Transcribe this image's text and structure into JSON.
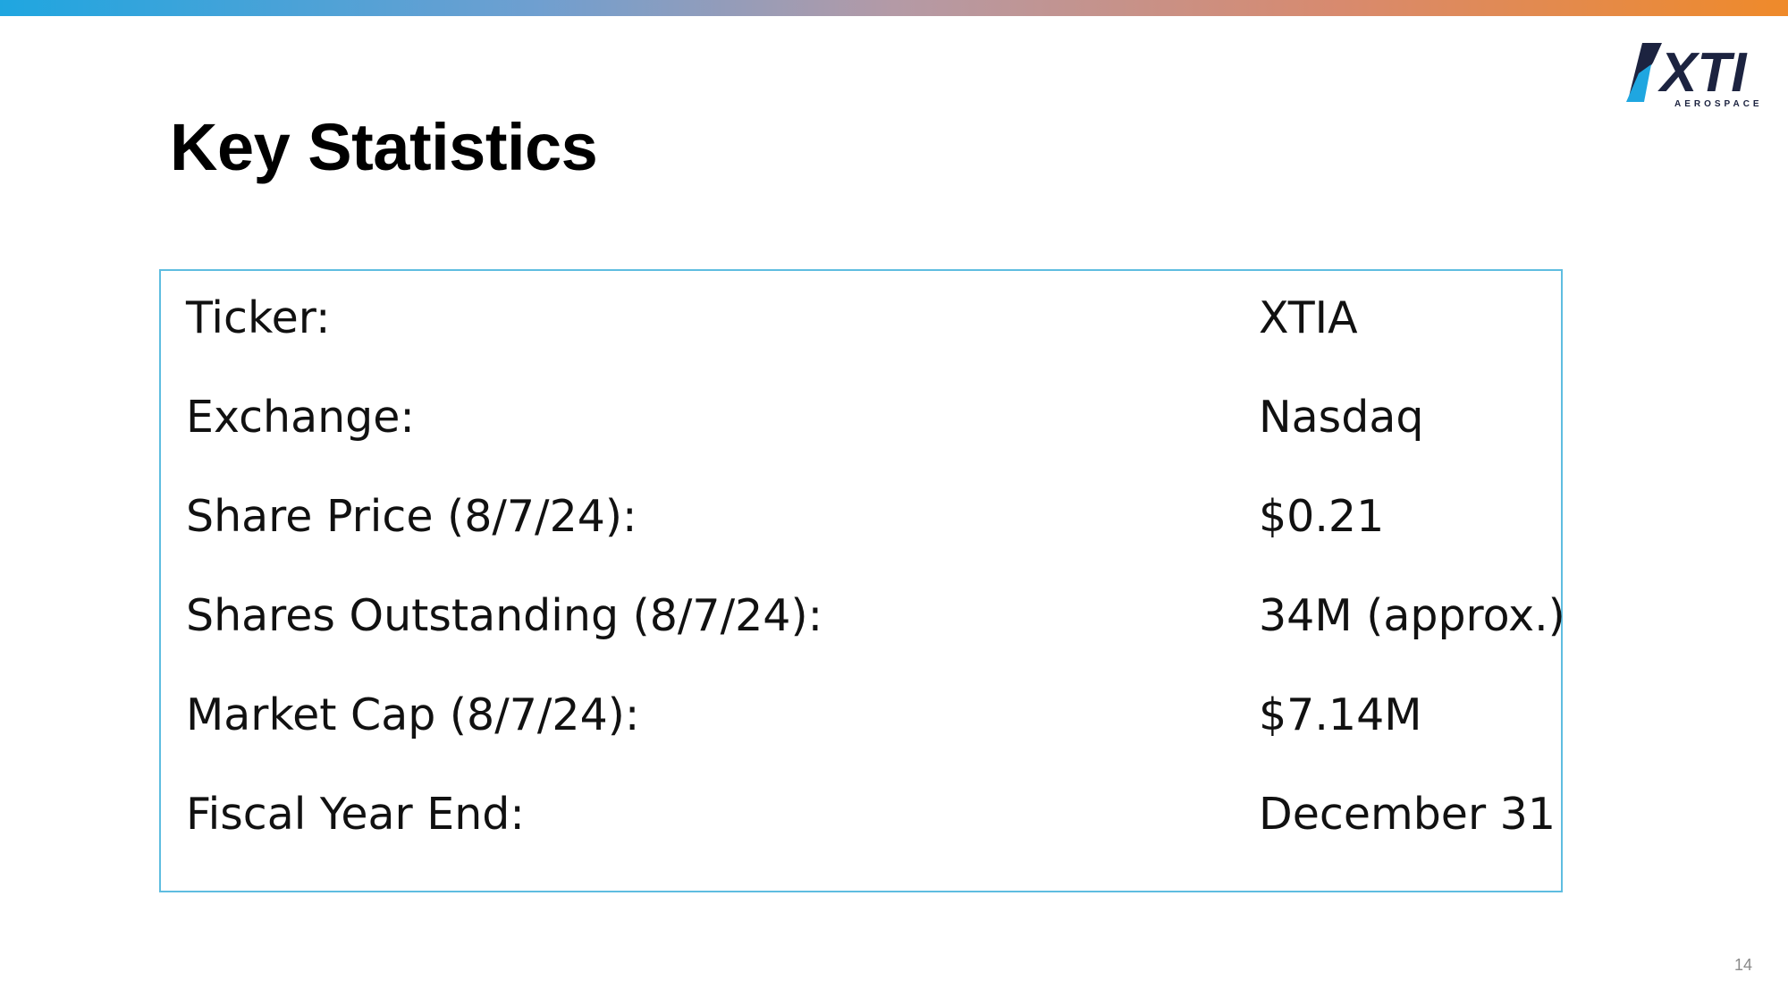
{
  "slide": {
    "title": "Key Statistics",
    "page_number": "14"
  },
  "logo": {
    "text": "XTI",
    "subtext": "AEROSPACE",
    "accent_color": "#1fa6e0",
    "text_color": "#1c2340"
  },
  "colors": {
    "border": "#5fbde0",
    "gradient_start": "#1fa6e0",
    "gradient_end": "#ef8a2a"
  },
  "stats": [
    {
      "label": "Ticker:",
      "value": "XTIA"
    },
    {
      "label": "Exchange:",
      "value": "Nasdaq"
    },
    {
      "label": "Share Price (8/7/24):",
      "value": "$0.21"
    },
    {
      "label": "Shares Outstanding (8/7/24):",
      "value": "34M (approx.)"
    },
    {
      "label": "Market Cap (8/7/24):",
      "value": "$7.14M"
    },
    {
      "label": "Fiscal Year End:",
      "value": "December 31"
    }
  ]
}
